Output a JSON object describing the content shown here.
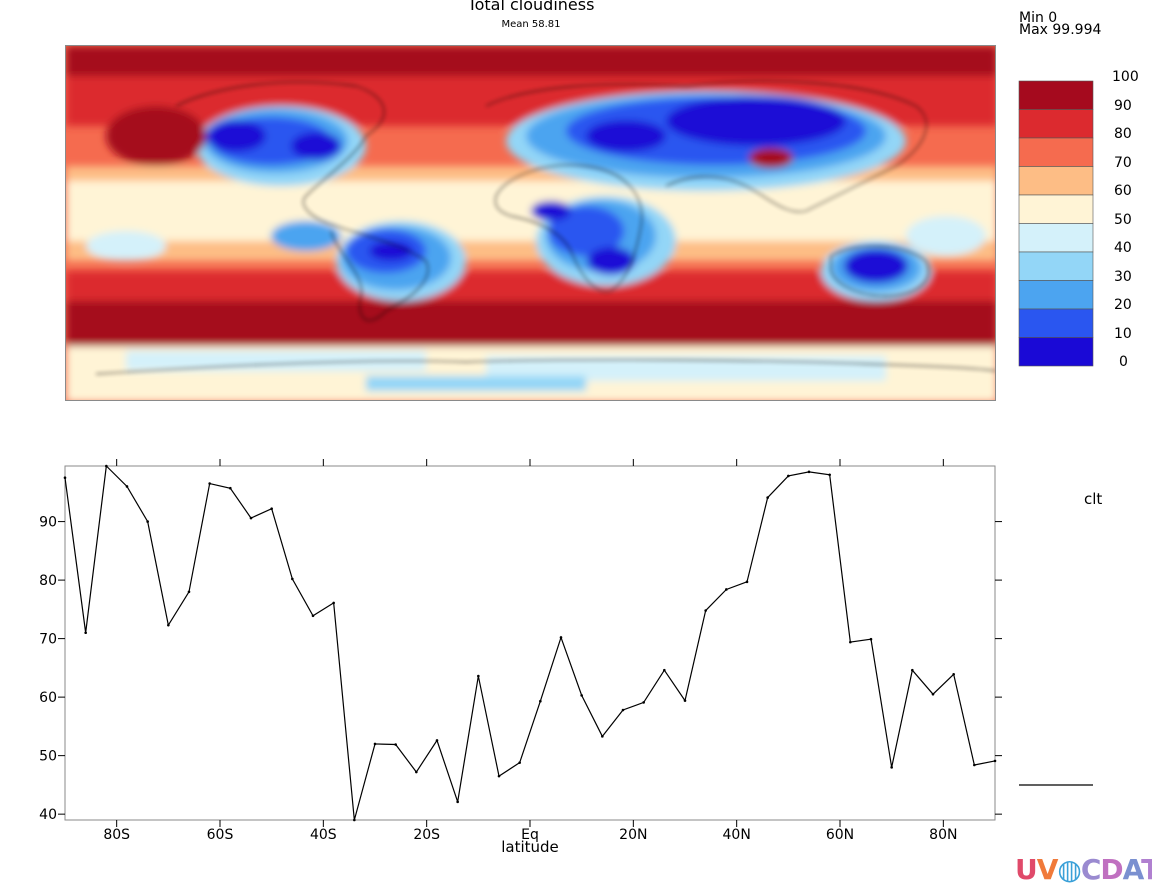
{
  "map": {
    "title": "Total cloudiness",
    "subtitle": "Mean 58.81",
    "min_text": "Min 0",
    "max_text": "Max 99.994",
    "legend": {
      "levels": [
        "100",
        "90",
        "80",
        "70",
        "60",
        "50",
        "40",
        "30",
        "20",
        "10",
        "0"
      ],
      "colors": [
        "#a50a1e",
        "#dc2a2f",
        "#f56b4f",
        "#fdbd85",
        "#fff4d6",
        "#d4f1fa",
        "#93d6f7",
        "#4ca4f0",
        "#2a56f0",
        "#1a09d6"
      ]
    }
  },
  "chart_data": {
    "type": "line",
    "xlabel": "latitude",
    "x_ticks": [
      {
        "value": -80,
        "label": "80S"
      },
      {
        "value": -60,
        "label": "60S"
      },
      {
        "value": -40,
        "label": "40S"
      },
      {
        "value": -20,
        "label": "20S"
      },
      {
        "value": 0,
        "label": "Eq"
      },
      {
        "value": 20,
        "label": "20N"
      },
      {
        "value": 40,
        "label": "40N"
      },
      {
        "value": 60,
        "label": "60N"
      },
      {
        "value": 80,
        "label": "80N"
      }
    ],
    "y_ticks": [
      40,
      50,
      60,
      70,
      80,
      90
    ],
    "xlim": [
      -90,
      90
    ],
    "ylim": [
      39,
      99.5
    ],
    "series": [
      {
        "name": "clt",
        "color": "#000000",
        "x": [
          -90,
          -86,
          -82,
          -78,
          -74,
          -70,
          -66,
          -62,
          -58,
          -54,
          -50,
          -46,
          -42,
          -38,
          -34,
          -30,
          -26,
          -22,
          -18,
          -14,
          -10,
          -6,
          -2,
          2,
          6,
          10,
          14,
          18,
          22,
          26,
          30,
          34,
          38,
          42,
          46,
          50,
          54,
          58,
          62,
          66,
          70,
          74,
          78,
          82,
          86,
          90
        ],
        "y": [
          97.5,
          71,
          99.5,
          96,
          90,
          72.3,
          78,
          96.5,
          95.7,
          90.6,
          92.2,
          80.2,
          73.9,
          76.1,
          39,
          52,
          51.9,
          47.2,
          52.6,
          42.1,
          63.6,
          46.5,
          48.8,
          59.3,
          70.2,
          60.3,
          53.3,
          57.8,
          59.1,
          64.6,
          59.4,
          74.8,
          78.4,
          79.7,
          94.1,
          97.8,
          98.5,
          98,
          69.4,
          69.9,
          48,
          64.6,
          60.5,
          63.9,
          48.4,
          49.1
        ]
      }
    ]
  }
}
